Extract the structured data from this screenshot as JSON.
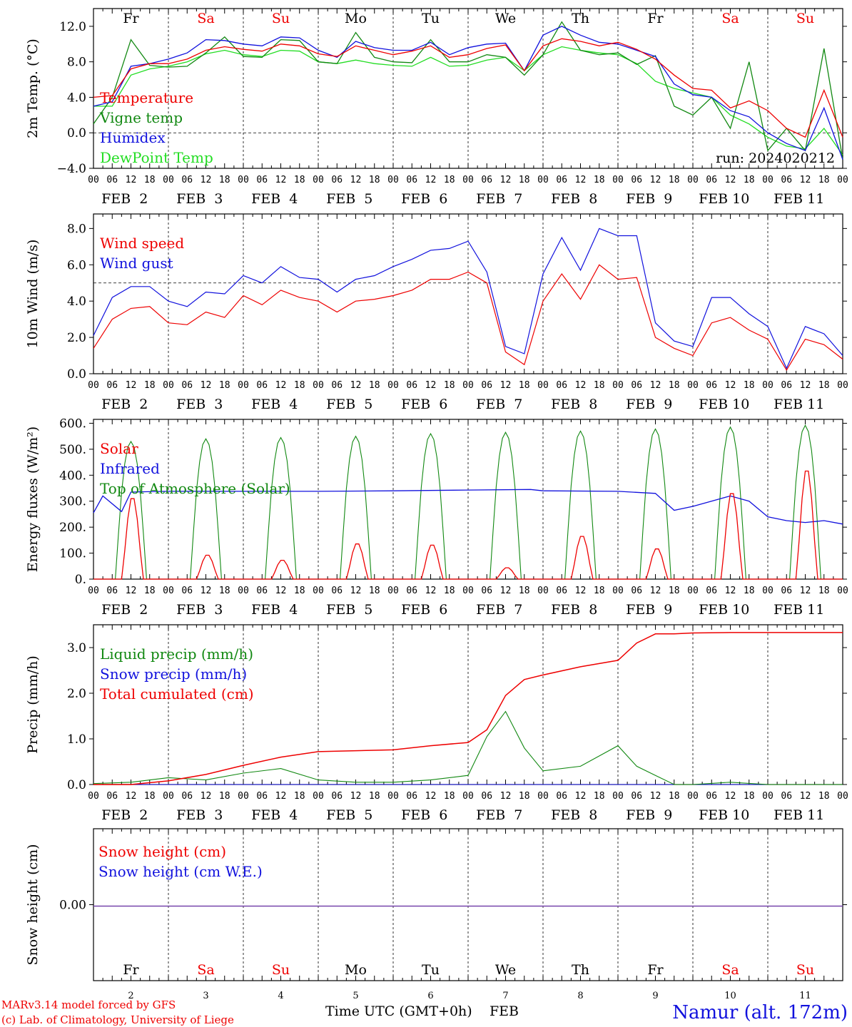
{
  "footer": {
    "model_note": "MARv3.14 model forced by GFS",
    "lab_note": "(c) Lab. of Climatology, University of Liege",
    "xaxis_title": "Time UTC (GMT+0h)",
    "month": "FEB",
    "station": "Namur (alt. 172m)"
  },
  "days": {
    "names": [
      "Fr",
      "Sa",
      "Su",
      "Mo",
      "Tu",
      "We",
      "Th",
      "Fr",
      "Sa",
      "Su"
    ],
    "weekend": [
      false,
      true,
      true,
      false,
      false,
      false,
      false,
      false,
      true,
      true
    ],
    "dates": [
      "FEB  2",
      "FEB  3",
      "FEB  4",
      "FEB  5",
      "FEB  6",
      "FEB  7",
      "FEB  8",
      "FEB  9",
      "FEB 10",
      "FEB 11"
    ],
    "numbers": [
      "2",
      "3",
      "4",
      "5",
      "6",
      "7",
      "8",
      "9",
      "10",
      "11"
    ],
    "hour_labels": [
      "00",
      "06",
      "12",
      "18"
    ],
    "final_hour": "00"
  },
  "colors": {
    "red": "#ee0000",
    "darkgreen": "#118811",
    "blue": "#1111dd",
    "lightgreen": "#22dd22",
    "purple": "#7744aa"
  },
  "chart_data": [
    {
      "type": "line",
      "ylabel": "2m Temp. (°C)",
      "ylim": [
        -4,
        14
      ],
      "yticks": [
        "12.0",
        "8.0",
        "4.0",
        "0.0",
        "−4.0"
      ],
      "ytick_values": [
        12,
        8,
        4,
        0,
        -4
      ],
      "reference_line": 0,
      "annotation": "run: 2024020212",
      "x_hours": [
        0,
        6,
        12,
        18,
        24,
        30,
        36,
        42,
        48,
        54,
        60,
        66,
        72,
        78,
        84,
        90,
        96,
        102,
        108,
        114,
        120,
        126,
        132,
        138,
        144,
        150,
        156,
        162,
        168,
        174,
        180,
        186,
        192,
        198,
        204,
        210,
        216,
        222,
        228,
        234,
        240
      ],
      "series": [
        {
          "name": "Temperature",
          "color": "red",
          "values": [
            4.0,
            4.2,
            7.2,
            7.8,
            7.8,
            8.3,
            9.3,
            9.7,
            9.4,
            9.2,
            10.0,
            9.8,
            8.9,
            8.6,
            9.8,
            9.3,
            8.8,
            9.2,
            9.8,
            8.5,
            8.8,
            9.5,
            9.9,
            7.0,
            9.8,
            10.6,
            10.3,
            9.8,
            10.2,
            9.4,
            8.3,
            6.5,
            5.0,
            4.8,
            2.8,
            3.6,
            2.5,
            0.5,
            -0.5,
            4.8,
            -0.5
          ]
        },
        {
          "name": "Vigne temp",
          "color": "darkgreen",
          "values": [
            1.0,
            4.0,
            10.5,
            7.6,
            7.4,
            7.5,
            9.0,
            10.8,
            8.6,
            8.5,
            10.5,
            10.4,
            8.0,
            7.8,
            11.3,
            8.5,
            8.0,
            7.9,
            10.5,
            8.0,
            8.0,
            8.8,
            8.5,
            6.5,
            8.8,
            12.5,
            9.3,
            8.8,
            9.0,
            7.7,
            8.7,
            3.0,
            2.0,
            4.0,
            0.5,
            8.0,
            -2.0,
            0.5,
            -2.0,
            9.5,
            -3.0
          ]
        },
        {
          "name": "Humidex",
          "color": "blue",
          "values": [
            3.0,
            3.5,
            7.5,
            7.8,
            8.3,
            9.0,
            10.5,
            10.4,
            10.0,
            9.8,
            10.8,
            10.7,
            9.3,
            8.5,
            10.3,
            9.6,
            9.3,
            9.3,
            10.2,
            8.8,
            9.6,
            10.0,
            10.1,
            7.0,
            11.0,
            12.0,
            11.0,
            10.2,
            10.0,
            9.3,
            8.6,
            5.5,
            4.3,
            4.0,
            2.5,
            1.8,
            0.0,
            -1.2,
            -2.0,
            2.8,
            -3.0
          ]
        },
        {
          "name": "DewPoint Temp",
          "color": "lightgreen",
          "values": [
            3.0,
            3.0,
            6.5,
            7.2,
            7.5,
            8.0,
            8.9,
            9.3,
            8.8,
            8.6,
            9.3,
            9.2,
            8.0,
            7.8,
            8.2,
            7.8,
            7.6,
            7.5,
            8.5,
            7.5,
            7.6,
            8.2,
            8.5,
            7.0,
            8.8,
            9.7,
            9.3,
            9.0,
            8.8,
            7.8,
            5.8,
            5.0,
            4.5,
            4.0,
            2.0,
            1.0,
            -0.5,
            -1.5,
            -1.8,
            0.5,
            -2.5
          ]
        }
      ]
    },
    {
      "type": "line",
      "ylabel": "10m Wind (m/s)",
      "ylim": [
        0,
        8.8
      ],
      "yticks": [
        "8.0",
        "6.0",
        "4.0",
        "2.0",
        "0.0"
      ],
      "ytick_values": [
        8,
        6,
        4,
        2,
        0
      ],
      "reference_line": 5,
      "x_hours": [
        0,
        6,
        12,
        18,
        24,
        30,
        36,
        42,
        48,
        54,
        60,
        66,
        72,
        78,
        84,
        90,
        96,
        102,
        108,
        114,
        120,
        126,
        132,
        138,
        144,
        150,
        156,
        162,
        168,
        174,
        180,
        186,
        192,
        198,
        204,
        210,
        216,
        222,
        228,
        234,
        240
      ],
      "series": [
        {
          "name": "Wind speed",
          "color": "red",
          "values": [
            1.4,
            3.0,
            3.6,
            3.7,
            2.8,
            2.7,
            3.4,
            3.1,
            4.3,
            3.8,
            4.6,
            4.2,
            4.0,
            3.4,
            4.0,
            4.1,
            4.3,
            4.6,
            5.2,
            5.2,
            5.6,
            5.0,
            1.2,
            0.5,
            4.0,
            5.5,
            4.1,
            6.0,
            5.2,
            5.3,
            2.0,
            1.4,
            1.0,
            2.8,
            3.1,
            2.4,
            1.9,
            0.2,
            1.9,
            1.6,
            0.8
          ]
        },
        {
          "name": "Wind gust",
          "color": "blue",
          "values": [
            2.1,
            4.2,
            4.8,
            4.8,
            4.0,
            3.7,
            4.5,
            4.4,
            5.4,
            5.0,
            5.9,
            5.3,
            5.2,
            4.5,
            5.2,
            5.4,
            5.9,
            6.3,
            6.8,
            6.9,
            7.3,
            5.6,
            1.5,
            1.1,
            5.5,
            7.5,
            5.7,
            8.0,
            7.6,
            7.6,
            2.8,
            1.8,
            1.5,
            4.2,
            4.2,
            3.3,
            2.6,
            0.3,
            2.6,
            2.2,
            1.0
          ]
        }
      ]
    },
    {
      "type": "line",
      "ylabel": "Energy fluxes (W/m²)",
      "ylim": [
        0,
        615
      ],
      "yticks": [
        "600.",
        "500.",
        "400.",
        "300.",
        "200.",
        "100.",
        "0."
      ],
      "ytick_values": [
        600,
        500,
        400,
        300,
        200,
        100,
        0
      ],
      "day_peaks": {
        "Solar": [
          320,
          95,
          75,
          140,
          135,
          45,
          170,
          120,
          340,
          430
        ],
        "Top of Atmosphere (Solar)": [
          530,
          540,
          545,
          550,
          560,
          565,
          570,
          578,
          585,
          592
        ]
      },
      "infrared_hours": [
        0,
        3,
        9,
        12,
        15,
        24,
        48,
        72,
        96,
        120,
        140,
        144,
        168,
        180,
        186,
        192,
        204,
        210,
        216,
        222,
        228,
        234,
        240
      ],
      "infrared_values": [
        255,
        320,
        260,
        335,
        336,
        338,
        338,
        338,
        340,
        343,
        345,
        340,
        338,
        330,
        265,
        280,
        320,
        300,
        240,
        225,
        218,
        225,
        212
      ],
      "series": [
        {
          "name": "Solar",
          "color": "red"
        },
        {
          "name": "Infrared",
          "color": "blue"
        },
        {
          "name": "Top of Atmosphere (Solar)",
          "color": "darkgreen"
        }
      ]
    },
    {
      "type": "line",
      "ylabel": "Precip (mm/h)",
      "ylim": [
        0,
        3.5
      ],
      "yticks": [
        "3.0",
        "2.0",
        "1.0",
        "0.0"
      ],
      "ytick_values": [
        3,
        2,
        1,
        0
      ],
      "x_hours": [
        0,
        12,
        24,
        36,
        48,
        60,
        72,
        84,
        96,
        108,
        120,
        126,
        132,
        138,
        144,
        156,
        168,
        174,
        180,
        186,
        192,
        204,
        216,
        228,
        240
      ],
      "series": [
        {
          "name": "Liquid precip (mm/h)",
          "color": "darkgreen",
          "values": [
            0.02,
            0.05,
            0.15,
            0.1,
            0.25,
            0.35,
            0.1,
            0.05,
            0.05,
            0.1,
            0.2,
            1.05,
            1.6,
            0.8,
            0.3,
            0.4,
            0.85,
            0.4,
            0.2,
            0.0,
            0.0,
            0.05,
            0.0,
            0.0,
            0.0
          ]
        },
        {
          "name": "Snow precip (mm/h)",
          "color": "blue",
          "values": [
            0,
            0,
            0,
            0,
            0,
            0,
            0,
            0,
            0,
            0,
            0,
            0,
            0,
            0,
            0,
            0,
            0,
            0,
            0,
            0,
            0,
            0,
            0,
            0,
            0
          ]
        },
        {
          "name": "Total cumulated (cm)",
          "color": "red",
          "values": [
            0.0,
            0.0,
            0.08,
            0.22,
            0.42,
            0.6,
            0.72,
            0.74,
            0.76,
            0.85,
            0.92,
            1.2,
            1.95,
            2.3,
            2.4,
            2.58,
            2.72,
            3.1,
            3.3,
            3.3,
            3.32,
            3.33,
            3.33,
            3.33,
            3.33
          ]
        }
      ]
    },
    {
      "type": "line",
      "ylabel": "Snow height (cm)",
      "yticks": [
        "0.00"
      ],
      "ytick_values": [
        0
      ],
      "series": [
        {
          "name": "Snow height (cm)",
          "color": "red",
          "values": [
            0,
            0
          ]
        },
        {
          "name": "Snow height (cm W.E.)",
          "color": "blue",
          "values": [
            0,
            0
          ]
        }
      ]
    }
  ]
}
